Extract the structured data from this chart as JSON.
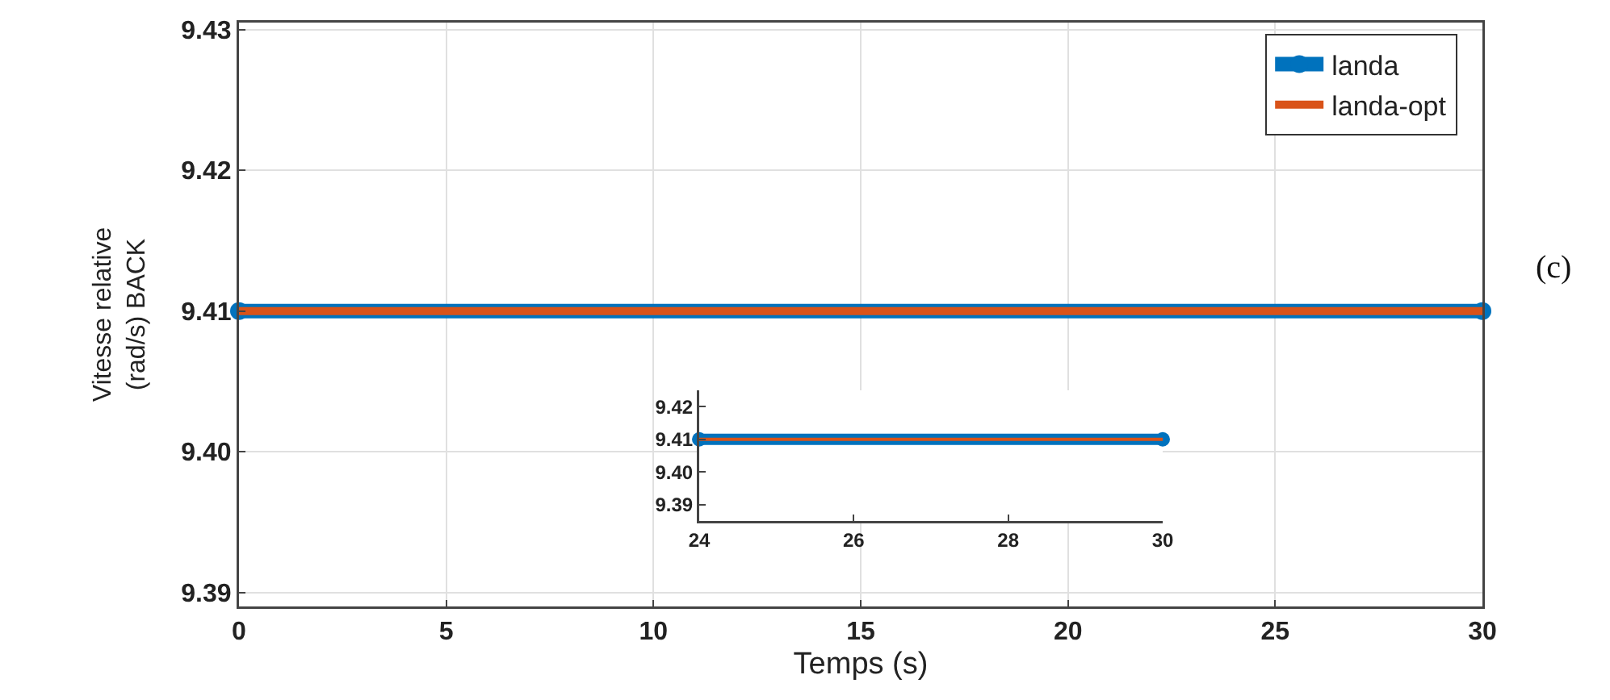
{
  "chart_data": [
    {
      "type": "line",
      "xlabel": "Temps (s)",
      "ylabel": "Vitesse relative\n(rad/s) BACK",
      "x": [
        0,
        30
      ],
      "series": [
        {
          "name": "landa",
          "color": "#0072bd",
          "marker": "circle",
          "values": [
            9.41,
            9.41
          ]
        },
        {
          "name": "landa-opt",
          "color": "#d95319",
          "values": [
            9.41,
            9.41
          ]
        }
      ],
      "xlim": [
        0,
        30
      ],
      "xticks": [
        0,
        5,
        10,
        15,
        20,
        25,
        30
      ],
      "ylim": [
        9.389,
        9.4305
      ],
      "yticks": [
        9.39,
        {
          "value": 9.4,
          "label": "9.40"
        },
        9.41,
        9.42,
        9.43
      ],
      "grid": true,
      "legend": "top right",
      "annotations": [
        "(c)"
      ]
    },
    {
      "type": "line",
      "x": [
        24,
        30
      ],
      "series": [
        {
          "color": "#0072bd",
          "marker": "circle",
          "values": [
            9.41,
            9.41
          ]
        },
        {
          "color": "#d95319",
          "values": [
            9.41,
            9.41
          ]
        }
      ],
      "xlim": [
        24,
        30
      ],
      "xticks": [
        24,
        26,
        28,
        30
      ],
      "ylim": [
        9.385,
        9.425
      ],
      "yticks": [
        9.39,
        {
          "value": 9.4,
          "label": "9.40"
        },
        9.41,
        9.42
      ]
    }
  ]
}
